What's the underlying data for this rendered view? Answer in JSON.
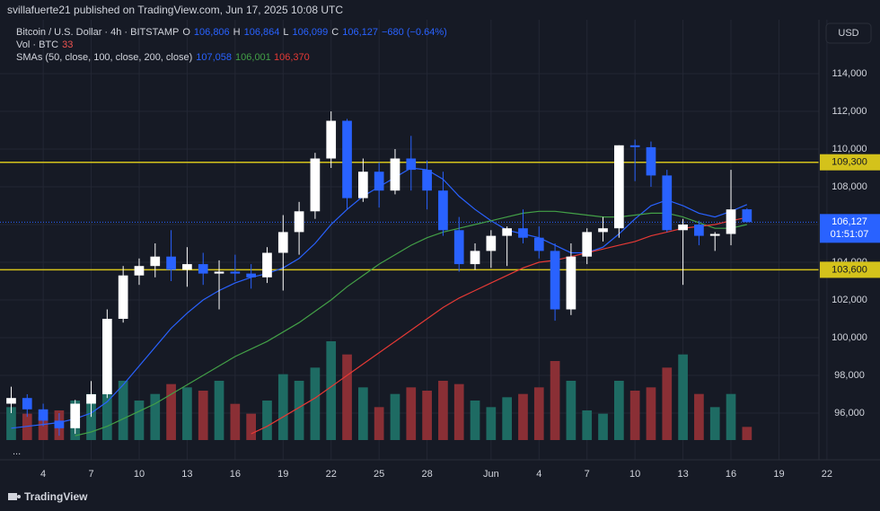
{
  "header": {
    "author_line": "svillafuerte21 published on TradingView.com, Jun 17, 2025 10:08 UTC",
    "symbol": "Bitcoin / U.S. Dollar · 4h · BITSTAMP",
    "ohlc": [
      {
        "key": "O",
        "value": "106,806"
      },
      {
        "key": "H",
        "value": "106,864"
      },
      {
        "key": "L",
        "value": "106,099"
      },
      {
        "key": "C",
        "value": "106,127"
      }
    ],
    "change": "−680 (−0.64%)",
    "vol_label": "Vol · BTC",
    "vol_value": "33",
    "sma_label": "SMAs (50, close, 100, close, 200, close)",
    "currency": "USD",
    "more": "...",
    "brand": "TradingView"
  },
  "chart_data": {
    "type": "candlestick",
    "x": [
      1,
      2,
      3,
      4,
      5,
      6,
      7,
      8,
      9,
      10,
      11,
      12,
      13,
      14,
      15,
      16,
      17,
      18,
      19,
      20,
      21,
      22,
      23,
      24,
      25,
      26,
      27,
      28,
      29,
      30,
      31,
      32,
      33,
      34,
      35,
      36,
      37,
      38,
      39,
      40,
      41,
      42,
      43,
      44,
      45,
      46,
      47
    ],
    "open": [
      96500,
      96800,
      96200,
      95600,
      95200,
      96500,
      97000,
      101000,
      103300,
      103800,
      104300,
      103600,
      103900,
      103400,
      103500,
      103400,
      103200,
      104500,
      105600,
      106700,
      109500,
      111500,
      107400,
      108800,
      107800,
      109500,
      108900,
      107800,
      105700,
      103900,
      104600,
      105400,
      105800,
      105300,
      104600,
      101500,
      104300,
      105600,
      105800,
      110200,
      110100,
      108600,
      105700,
      106000,
      105400,
      105500,
      106806
    ],
    "high": [
      97400,
      97000,
      96500,
      96000,
      96700,
      97700,
      101500,
      103800,
      104200,
      105000,
      105700,
      104800,
      104500,
      104100,
      104400,
      103900,
      104800,
      106500,
      107200,
      109800,
      112000,
      111600,
      109500,
      109300,
      110000,
      110700,
      109400,
      108800,
      106400,
      105000,
      105700,
      105900,
      106800,
      105900,
      105000,
      105000,
      105800,
      106400,
      110200,
      110500,
      110400,
      108900,
      106300,
      106200,
      105600,
      108900,
      106864
    ],
    "low": [
      96000,
      95800,
      95300,
      94800,
      94900,
      95800,
      96800,
      100800,
      102800,
      103200,
      103000,
      102700,
      102800,
      101500,
      103000,
      102600,
      102900,
      102500,
      104400,
      106300,
      109000,
      106800,
      107200,
      106900,
      107600,
      107800,
      106800,
      105400,
      103500,
      103600,
      103700,
      103800,
      105000,
      104200,
      100900,
      101200,
      103900,
      105100,
      105300,
      108300,
      108000,
      105600,
      102800,
      104900,
      104600,
      104900,
      106099
    ],
    "close": [
      96800,
      96200,
      95600,
      95200,
      96500,
      97000,
      101000,
      103300,
      103800,
      104300,
      103600,
      103900,
      103400,
      103500,
      103400,
      103200,
      104500,
      105600,
      106700,
      109500,
      111500,
      107400,
      108800,
      107800,
      109500,
      108900,
      107800,
      105700,
      103900,
      104600,
      105400,
      105800,
      105300,
      104600,
      101500,
      104300,
      105600,
      105800,
      110200,
      110100,
      108600,
      105700,
      106000,
      105400,
      105500,
      106800,
      106127
    ],
    "up_color": "#ffffff",
    "down_color": "#2962ff",
    "volume": [
      500,
      400,
      350,
      450,
      600,
      700,
      1100,
      900,
      600,
      700,
      850,
      800,
      750,
      900,
      550,
      400,
      600,
      1000,
      900,
      1100,
      1500,
      1300,
      800,
      500,
      700,
      800,
      750,
      900,
      850,
      600,
      500,
      650,
      700,
      800,
      1200,
      900,
      450,
      400,
      900,
      750,
      800,
      1100,
      1300,
      700,
      500,
      700,
      200
    ],
    "volume_up_color": "#1e6b63",
    "volume_down_color": "#8a2f35",
    "sma": [
      {
        "name": "50",
        "value_label": "107,058",
        "color": "#2962ff",
        "values": [
          95200,
          95300,
          95400,
          95500,
          95700,
          96000,
          96600,
          97500,
          98500,
          99500,
          100500,
          101300,
          102000,
          102500,
          102900,
          103200,
          103400,
          103700,
          104200,
          105000,
          106000,
          106800,
          107500,
          108000,
          108500,
          109000,
          108900,
          108400,
          107500,
          106800,
          106200,
          105700,
          105500,
          105300,
          104900,
          104500,
          104500,
          104800,
          105500,
          106300,
          107000,
          107300,
          107000,
          106600,
          106400,
          106700,
          107058
        ]
      },
      {
        "name": "100",
        "value_label": "106,001",
        "color": "#43a047",
        "values": [
          null,
          null,
          null,
          null,
          94800,
          95000,
          95300,
          95700,
          96100,
          96500,
          97000,
          97500,
          98000,
          98500,
          99000,
          99400,
          99800,
          100300,
          100800,
          101400,
          102000,
          102700,
          103300,
          103900,
          104400,
          104900,
          105300,
          105600,
          105800,
          106000,
          106200,
          106400,
          106600,
          106700,
          106700,
          106600,
          106500,
          106400,
          106400,
          106500,
          106600,
          106600,
          106400,
          106100,
          105800,
          105800,
          106001
        ]
      },
      {
        "name": "200",
        "value_label": "106,370",
        "color": "#e53935",
        "values": [
          null,
          null,
          null,
          null,
          null,
          null,
          null,
          null,
          null,
          null,
          null,
          null,
          null,
          null,
          null,
          94900,
          95300,
          95800,
          96300,
          96800,
          97400,
          98000,
          98600,
          99200,
          99800,
          100400,
          101000,
          101600,
          102100,
          102500,
          102900,
          103300,
          103700,
          104000,
          104100,
          104300,
          104500,
          104700,
          104900,
          105100,
          105400,
          105600,
          105800,
          105900,
          106000,
          106200,
          106370
        ]
      }
    ],
    "hlines": [
      {
        "value": 109300,
        "label": "109,300",
        "color": "#d4c21b"
      },
      {
        "value": 103600,
        "label": "103,600",
        "color": "#d4c21b"
      }
    ],
    "last": {
      "value": 106127,
      "label": "106,127",
      "countdown": "01:51:07",
      "color": "#2962ff"
    },
    "xlim": [
      0.3,
      51.5
    ],
    "xticks": [
      {
        "value": 3,
        "label": "4"
      },
      {
        "value": 6,
        "label": "7"
      },
      {
        "value": 9,
        "label": "10"
      },
      {
        "value": 12,
        "label": "13"
      },
      {
        "value": 15,
        "label": "16"
      },
      {
        "value": 18,
        "label": "19"
      },
      {
        "value": 21,
        "label": "22"
      },
      {
        "value": 24,
        "label": "25"
      },
      {
        "value": 27,
        "label": "28"
      },
      {
        "value": 31,
        "label": "Jun"
      },
      {
        "value": 34,
        "label": "4"
      },
      {
        "value": 37,
        "label": "7"
      },
      {
        "value": 40,
        "label": "10"
      },
      {
        "value": 43,
        "label": "13"
      },
      {
        "value": 46,
        "label": "16"
      },
      {
        "value": 49,
        "label": "19"
      },
      {
        "value": 52,
        "label": "22"
      }
    ],
    "ylim": [
      94000,
      116000
    ],
    "yticks": [
      {
        "value": 96000,
        "label": "96,000"
      },
      {
        "value": 98000,
        "label": "98,000"
      },
      {
        "value": 100000,
        "label": "100,000"
      },
      {
        "value": 102000,
        "label": "102,000"
      },
      {
        "value": 104000,
        "label": "104,000"
      },
      {
        "value": 106000,
        "label": "106,000"
      },
      {
        "value": 108000,
        "label": "108,000"
      },
      {
        "value": 110000,
        "label": "110,000"
      },
      {
        "value": 112000,
        "label": "112,000"
      },
      {
        "value": 114000,
        "label": "114,000"
      }
    ],
    "grid": true
  }
}
